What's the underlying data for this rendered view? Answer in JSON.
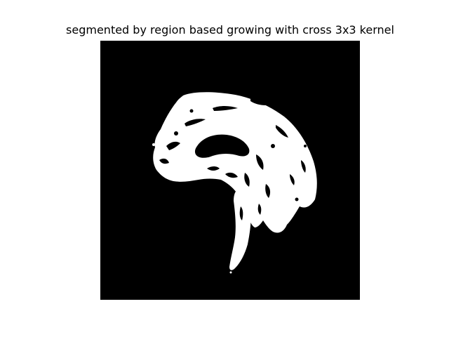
{
  "figure": {
    "title": "segmented by region based growing with cross 3x3 kernel"
  },
  "image": {
    "content": "binary segmentation mask of a sagittal brain MRI slice",
    "background_color": "#000000",
    "foreground_color": "#ffffff"
  }
}
